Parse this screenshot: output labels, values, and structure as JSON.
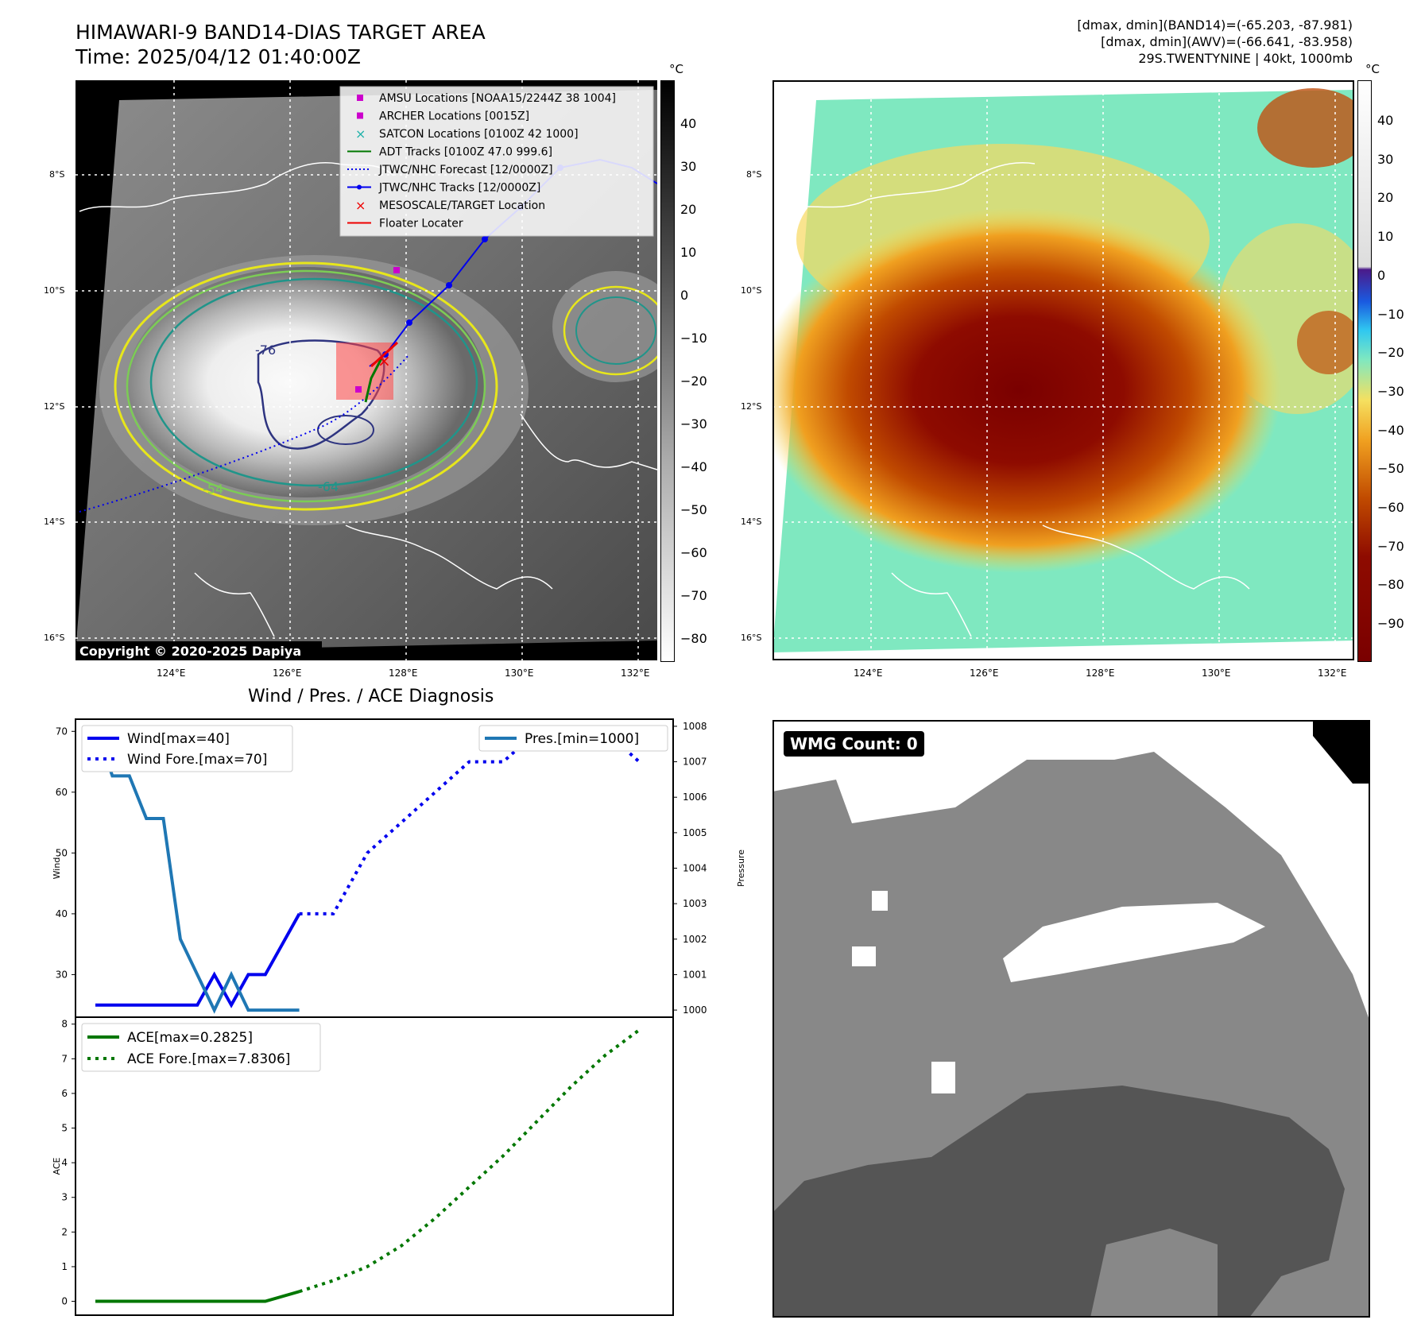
{
  "header": {
    "title": "HIMAWARI-9 BAND14-DIAS TARGET AREA",
    "time": "Time: 2025/04/12 01:40:00Z",
    "right_line1": "[dmax, dmin](BAND14)=(-65.203, -87.981)",
    "right_line2": "[dmax, dmin](AWV)=(-66.641, -83.958)",
    "right_line3": "29S.TWENTYNINE | 40kt, 1000mb"
  },
  "map": {
    "lat_labels": [
      "8°S",
      "10°S",
      "12°S",
      "14°S",
      "16°S"
    ],
    "lon_labels": [
      "124°E",
      "126°E",
      "128°E",
      "130°E",
      "132°E"
    ],
    "contour_labels": [
      "-76",
      "-64",
      "-54"
    ],
    "copyright": "Copyright © 2020-2025 Dapiya",
    "legend": [
      {
        "label": "AMSU Locations [NOAA15/2244Z 38 1004]",
        "color": "#cc00cc",
        "marker": "square"
      },
      {
        "label": "ARCHER Locations [0015Z]",
        "color": "#cc00cc",
        "marker": "square"
      },
      {
        "label": "SATCON Locations [0100Z 42 1000]",
        "color": "#20b2aa",
        "marker": "x"
      },
      {
        "label": "ADT Tracks [0100Z 47.0 999.6]",
        "color": "#007700",
        "marker": "line"
      },
      {
        "label": "JTWC/NHC Forecast [12/0000Z]",
        "color": "#0000ee",
        "marker": "dotted"
      },
      {
        "label": "JTWC/NHC Tracks [12/0000Z]",
        "color": "#0000ee",
        "marker": "line-dot"
      },
      {
        "label": "MESOSCALE/TARGET Location",
        "color": "#ee0000",
        "marker": "x"
      },
      {
        "label": "Floater Locater",
        "color": "#ee0000",
        "marker": "line"
      }
    ]
  },
  "colorbar1": {
    "unit": "°C",
    "ticks": [
      "40",
      "30",
      "20",
      "10",
      "0",
      "−10",
      "−20",
      "−30",
      "−40",
      "−50",
      "−60",
      "−70",
      "−80"
    ]
  },
  "colorbar2": {
    "unit": "°C",
    "ticks": [
      "40",
      "30",
      "20",
      "10",
      "0",
      "−10",
      "−20",
      "−30",
      "−40",
      "−50",
      "−60",
      "−70",
      "−80",
      "−90"
    ]
  },
  "wmg": {
    "label": "WMG Count: 0"
  },
  "chart_data": [
    {
      "type": "line",
      "title": "Wind / Pres. / ACE Diagnosis",
      "ylabel": "Wind",
      "y2label": "Pressure",
      "ylim": [
        23,
        72
      ],
      "y2lim": [
        999.8,
        1008.2
      ],
      "yticks": [
        30,
        40,
        50,
        60,
        70
      ],
      "y2ticks": [
        1000,
        1001,
        1002,
        1003,
        1004,
        1005,
        1006,
        1007,
        1008
      ],
      "x": [
        0,
        1,
        2,
        3,
        4,
        5,
        6,
        7,
        8,
        9,
        10,
        11,
        12,
        13,
        14,
        15,
        16,
        17,
        18,
        19,
        20,
        21,
        22,
        23,
        24,
        25,
        26,
        27,
        28,
        29,
        30,
        31,
        32
      ],
      "series": [
        {
          "name": "Wind[max=40]",
          "axis": "left",
          "color": "#0000ee",
          "style": "solid",
          "x": [
            0,
            1,
            2,
            3,
            4,
            5,
            6,
            7,
            8,
            9,
            10,
            11,
            12
          ],
          "values": [
            25,
            25,
            25,
            25,
            25,
            25,
            25,
            30,
            25,
            30,
            30,
            35,
            40
          ]
        },
        {
          "name": "Wind Fore.[max=70]",
          "axis": "left",
          "color": "#0000ee",
          "style": "dotted",
          "x": [
            12,
            14,
            16,
            18,
            20,
            22,
            24,
            26,
            28,
            30,
            32
          ],
          "values": [
            40,
            40,
            50,
            55,
            60,
            65,
            65,
            70,
            70,
            70,
            65
          ]
        },
        {
          "name": "Pres.[min=1000]",
          "axis": "right",
          "color": "#1f77b4",
          "style": "solid",
          "x": [
            0,
            1,
            2,
            3,
            4,
            5,
            6,
            7,
            8,
            9,
            10,
            11,
            12
          ],
          "values": [
            1008,
            1006.6,
            1006.6,
            1005.4,
            1005.4,
            1002,
            1001,
            1000,
            1001,
            1000,
            1000,
            1000,
            1000
          ]
        }
      ]
    },
    {
      "type": "line",
      "ylabel": "ACE",
      "ylim": [
        -0.4,
        8.2
      ],
      "yticks": [
        0,
        1,
        2,
        3,
        4,
        5,
        6,
        7,
        8
      ],
      "series": [
        {
          "name": "ACE[max=0.2825]",
          "color": "#007700",
          "style": "solid",
          "x": [
            0,
            10,
            12
          ],
          "values": [
            0,
            0,
            0.2825
          ]
        },
        {
          "name": "ACE Fore.[max=7.8306]",
          "color": "#007700",
          "style": "dotted",
          "x": [
            12,
            14,
            16,
            18,
            20,
            22,
            24,
            26,
            28,
            30,
            32
          ],
          "values": [
            0.2825,
            0.6,
            1.0,
            1.6,
            2.4,
            3.3,
            4.2,
            5.2,
            6.2,
            7.1,
            7.8306
          ]
        }
      ]
    }
  ]
}
